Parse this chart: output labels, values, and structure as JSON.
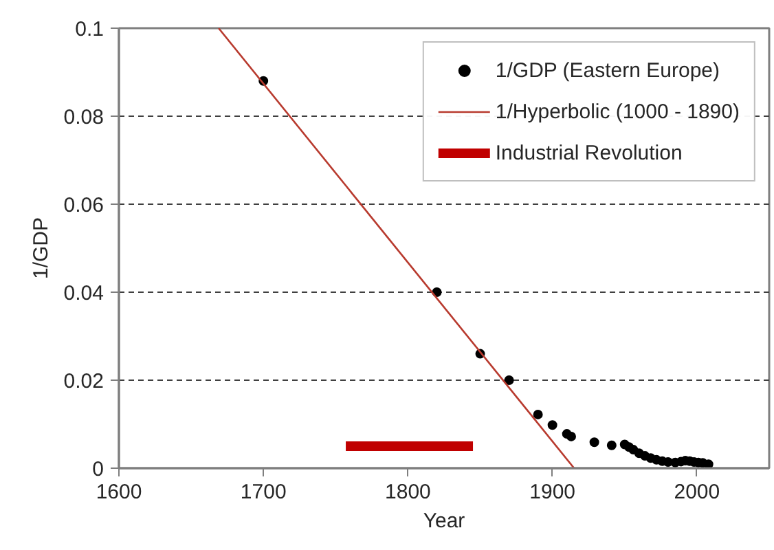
{
  "chart_data": {
    "type": "scatter",
    "xlabel": "Year",
    "ylabel": "1/GDP",
    "xlim": [
      1600,
      2050
    ],
    "ylim": [
      0,
      0.1
    ],
    "xticks": [
      1600,
      1700,
      1800,
      1900,
      2000
    ],
    "yticks": [
      0,
      0.02,
      0.04,
      0.06,
      0.08,
      0.1
    ],
    "grid": "y",
    "legend": "top right",
    "series": [
      {
        "name": "1/GDP (Eastern Europe)",
        "marker": "circle",
        "color": "#000000",
        "x": [
          1700,
          1820,
          1850,
          1870,
          1890,
          1900,
          1910,
          1913,
          1929,
          1941,
          1950,
          1953,
          1956,
          1960,
          1964,
          1968,
          1972,
          1976,
          1980,
          1985,
          1989,
          1992,
          1995,
          1998,
          2001,
          2004,
          2008
        ],
        "values": [
          0.088,
          0.04,
          0.026,
          0.02,
          0.0122,
          0.0098,
          0.0078,
          0.0072,
          0.0059,
          0.0052,
          0.0054,
          0.0048,
          0.0042,
          0.0034,
          0.0028,
          0.0023,
          0.0019,
          0.0016,
          0.0014,
          0.0013,
          0.0015,
          0.0017,
          0.0016,
          0.0014,
          0.0013,
          0.0012,
          0.0009
        ]
      },
      {
        "name": "1/Hyperbolic (1000 - 1890)",
        "type": "line",
        "color": "#b83a2e",
        "x": [
          1669,
          1915
        ],
        "values": [
          0.1,
          0
        ]
      },
      {
        "name": "Industrial Revolution",
        "type": "line",
        "color": "#c00000",
        "x": [
          1757,
          1845
        ],
        "values": [
          0.005,
          0.005
        ]
      }
    ]
  }
}
